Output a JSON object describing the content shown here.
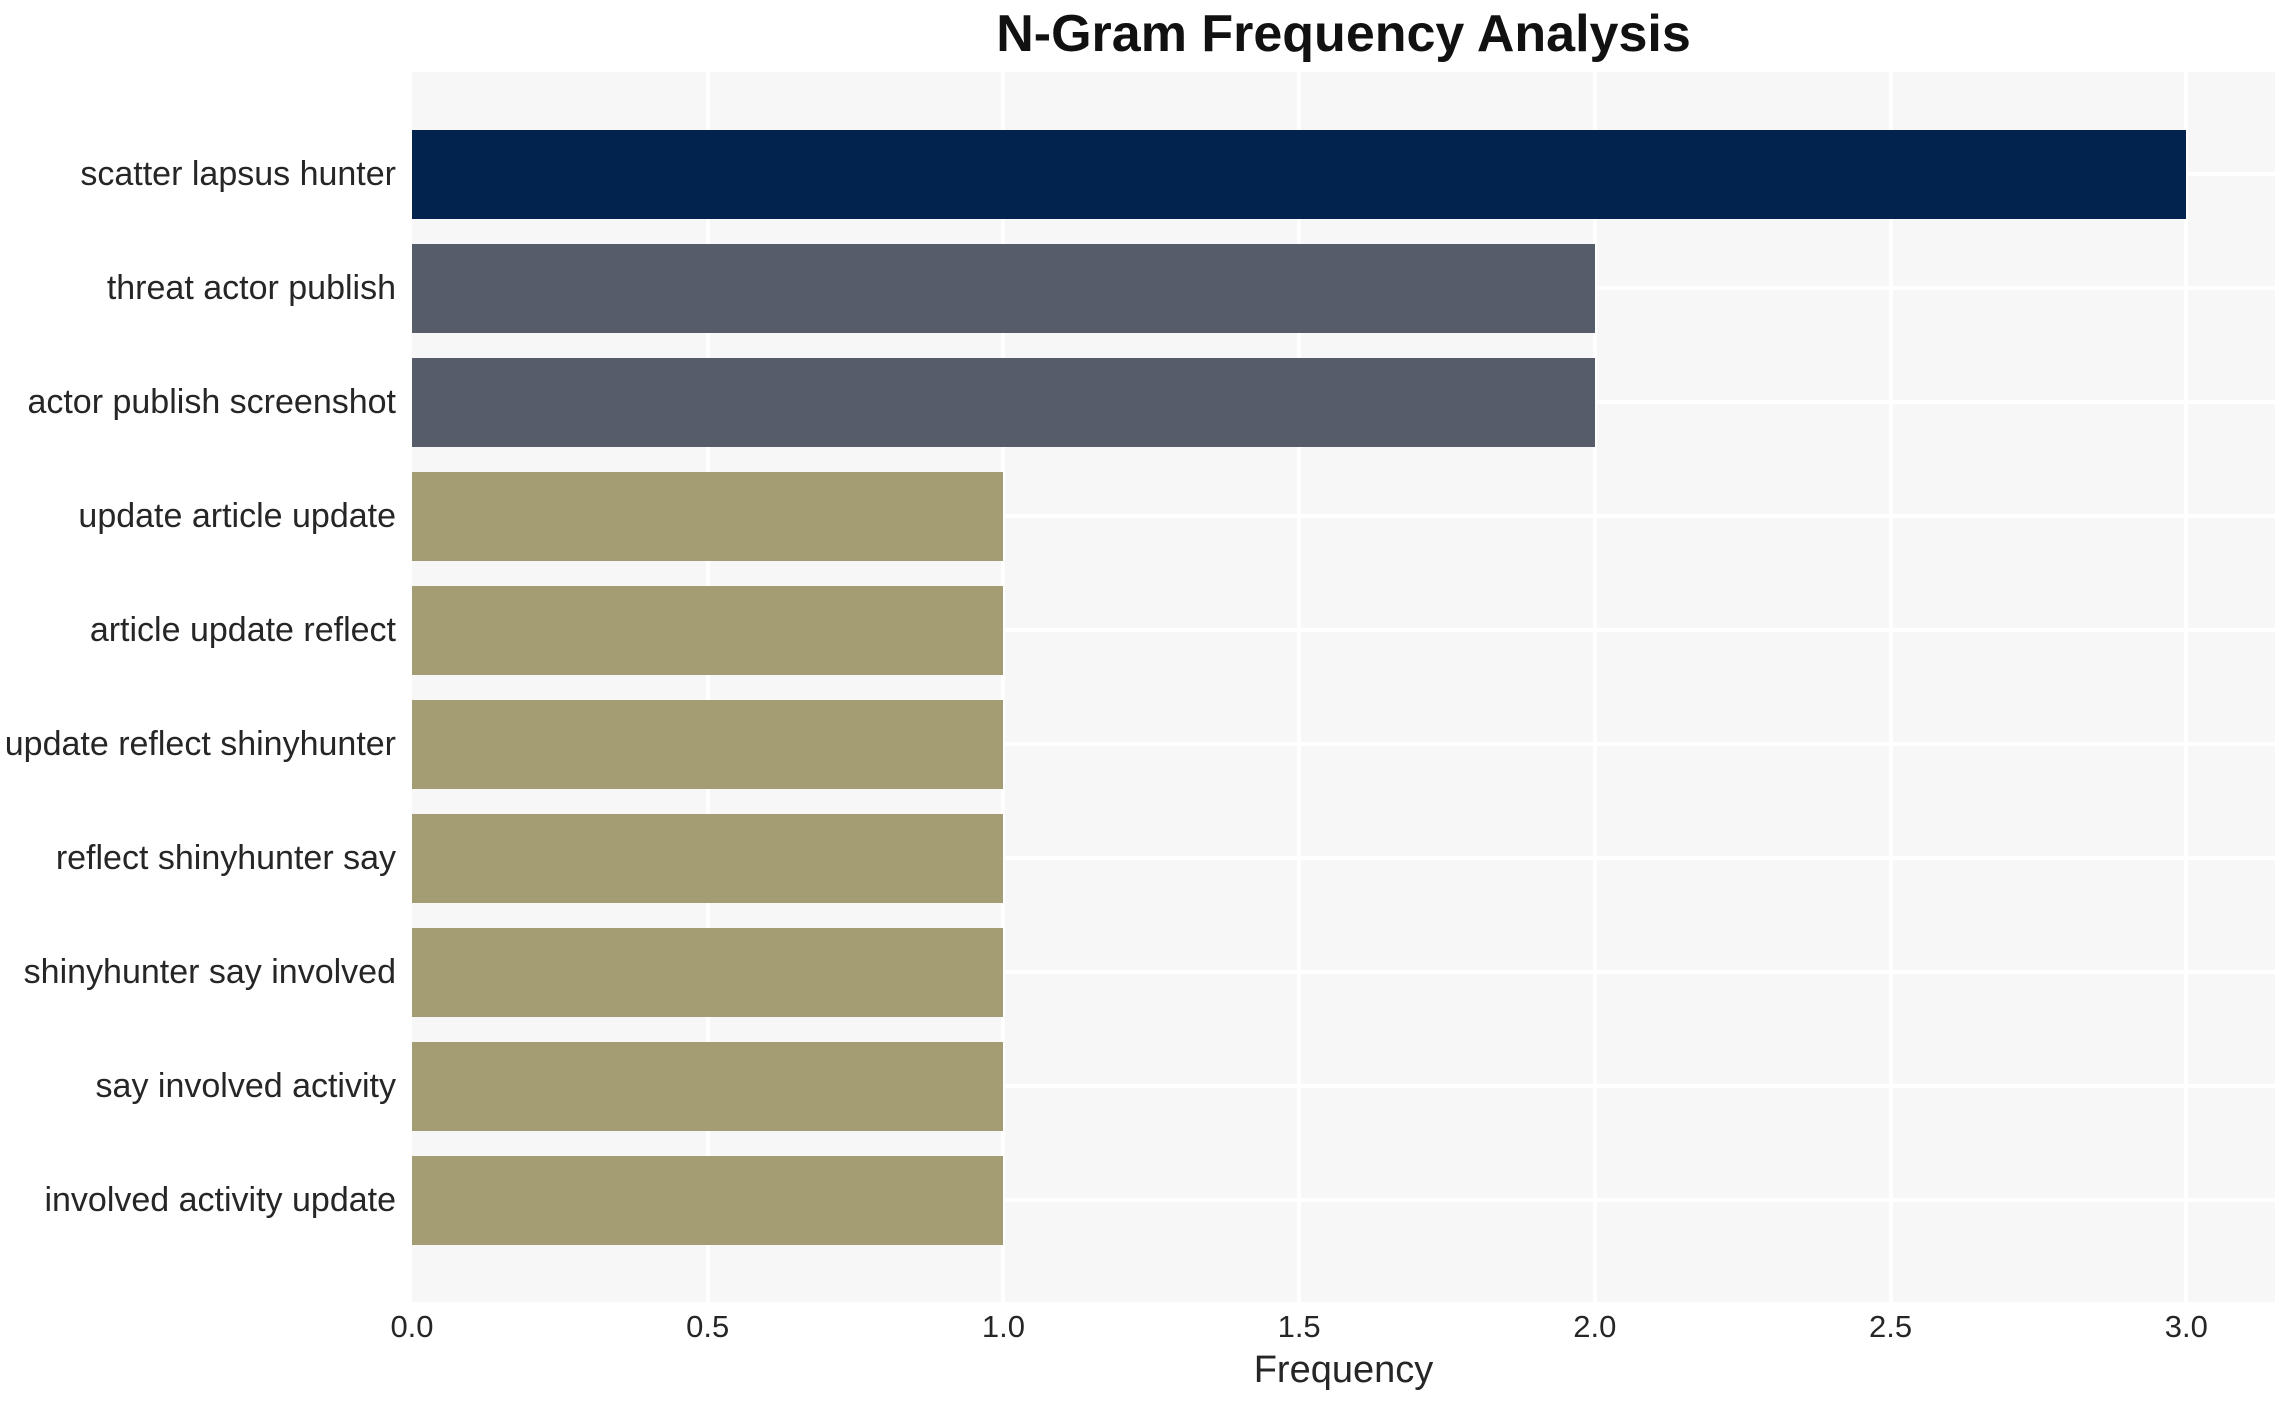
{
  "chart_data": {
    "type": "bar",
    "orientation": "horizontal",
    "title": "N-Gram Frequency Analysis",
    "xlabel": "Frequency",
    "ylabel": "",
    "categories": [
      "scatter lapsus hunter",
      "threat actor publish",
      "actor publish screenshot",
      "update article update",
      "article update reflect",
      "update reflect shinyhunter",
      "reflect shinyhunter say",
      "shinyhunter say involved",
      "say involved activity",
      "involved activity update"
    ],
    "values": [
      3.0,
      2.0,
      2.0,
      1.0,
      1.0,
      1.0,
      1.0,
      1.0,
      1.0,
      1.0
    ],
    "bar_colors": [
      "#02234e",
      "#575c6a",
      "#575c6a",
      "#a49d74",
      "#a49d74",
      "#a49d74",
      "#a49d74",
      "#a49d74",
      "#a49d74",
      "#a49d74"
    ],
    "xlim": [
      0,
      3.15
    ],
    "xtick_labels": [
      "0.0",
      "0.5",
      "1.0",
      "1.5",
      "2.0",
      "2.5",
      "3.0"
    ],
    "xtick_values": [
      0,
      0.5,
      1.0,
      1.5,
      2.0,
      2.5,
      3.0
    ],
    "grid": true,
    "legend": false,
    "plot_bg": "#f7f7f8",
    "grid_color": "#ffffff",
    "text_color": "#262626"
  }
}
